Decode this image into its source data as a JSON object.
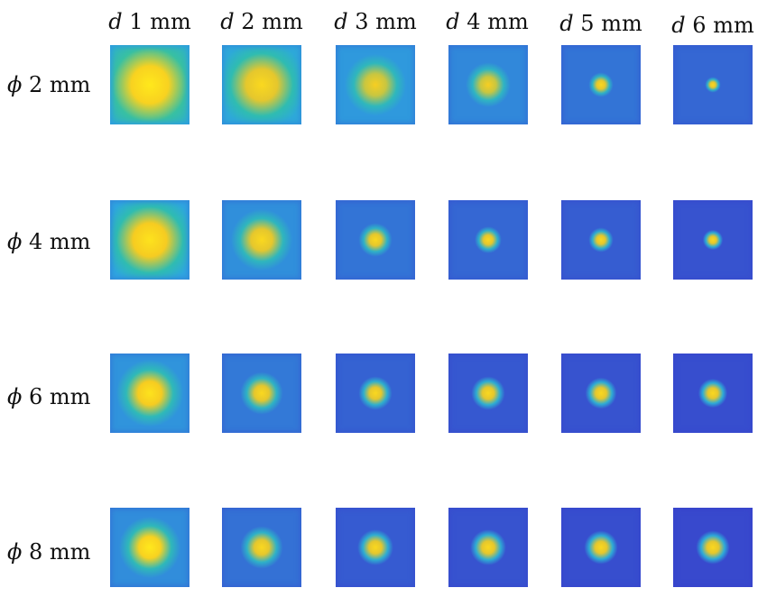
{
  "column_headers": [
    {
      "symbol": "d",
      "value": "1 mm"
    },
    {
      "symbol": "d",
      "value": "2 mm"
    },
    {
      "symbol": "d",
      "value": "3 mm"
    },
    {
      "symbol": "d",
      "value": "4 mm"
    },
    {
      "symbol": "d",
      "value": "5 mm"
    },
    {
      "symbol": "d",
      "value": "6 mm"
    }
  ],
  "row_headers": [
    {
      "symbol": "ϕ",
      "value": "2 mm"
    },
    {
      "symbol": "ϕ",
      "value": "4 mm"
    },
    {
      "symbol": "ϕ",
      "value": "6 mm"
    },
    {
      "symbol": "ϕ",
      "value": "8 mm"
    }
  ],
  "colormap": {
    "low": "#3a35c9",
    "mid": "#2ea6e0",
    "teal": "#2fc0a8",
    "high": "#f5c822",
    "peak": "#ffe81c"
  },
  "grid_note": "Each cell is a square intensity map with a bright central spot; spot intensity/spread shown as colormap level 0-1.",
  "cells": [
    [
      {
        "peak_level": 1.0,
        "spread": 0.95,
        "background_level": 0.55
      },
      {
        "peak_level": 0.95,
        "spread": 0.8,
        "background_level": 0.48
      },
      {
        "peak_level": 0.92,
        "spread": 0.55,
        "background_level": 0.4
      },
      {
        "peak_level": 0.92,
        "spread": 0.4,
        "background_level": 0.33
      },
      {
        "peak_level": 0.95,
        "spread": 0.22,
        "background_level": 0.25
      },
      {
        "peak_level": 0.95,
        "spread": 0.14,
        "background_level": 0.2
      }
    ],
    [
      {
        "peak_level": 0.98,
        "spread": 0.85,
        "background_level": 0.45
      },
      {
        "peak_level": 0.95,
        "spread": 0.55,
        "background_level": 0.36
      },
      {
        "peak_level": 0.95,
        "spread": 0.3,
        "background_level": 0.25
      },
      {
        "peak_level": 0.95,
        "spread": 0.24,
        "background_level": 0.2
      },
      {
        "peak_level": 0.95,
        "spread": 0.22,
        "background_level": 0.16
      },
      {
        "peak_level": 0.95,
        "spread": 0.18,
        "background_level": 0.12
      }
    ],
    [
      {
        "peak_level": 0.98,
        "spread": 0.6,
        "background_level": 0.38
      },
      {
        "peak_level": 0.95,
        "spread": 0.38,
        "background_level": 0.27
      },
      {
        "peak_level": 0.95,
        "spread": 0.3,
        "background_level": 0.18
      },
      {
        "peak_level": 0.95,
        "spread": 0.3,
        "background_level": 0.14
      },
      {
        "peak_level": 0.95,
        "spread": 0.28,
        "background_level": 0.12
      },
      {
        "peak_level": 0.95,
        "spread": 0.26,
        "background_level": 0.1
      }
    ],
    [
      {
        "peak_level": 1.0,
        "spread": 0.55,
        "background_level": 0.35
      },
      {
        "peak_level": 0.95,
        "spread": 0.38,
        "background_level": 0.24
      },
      {
        "peak_level": 0.95,
        "spread": 0.32,
        "background_level": 0.15
      },
      {
        "peak_level": 0.95,
        "spread": 0.32,
        "background_level": 0.12
      },
      {
        "peak_level": 0.95,
        "spread": 0.3,
        "background_level": 0.1
      },
      {
        "peak_level": 0.95,
        "spread": 0.3,
        "background_level": 0.08
      }
    ]
  ]
}
